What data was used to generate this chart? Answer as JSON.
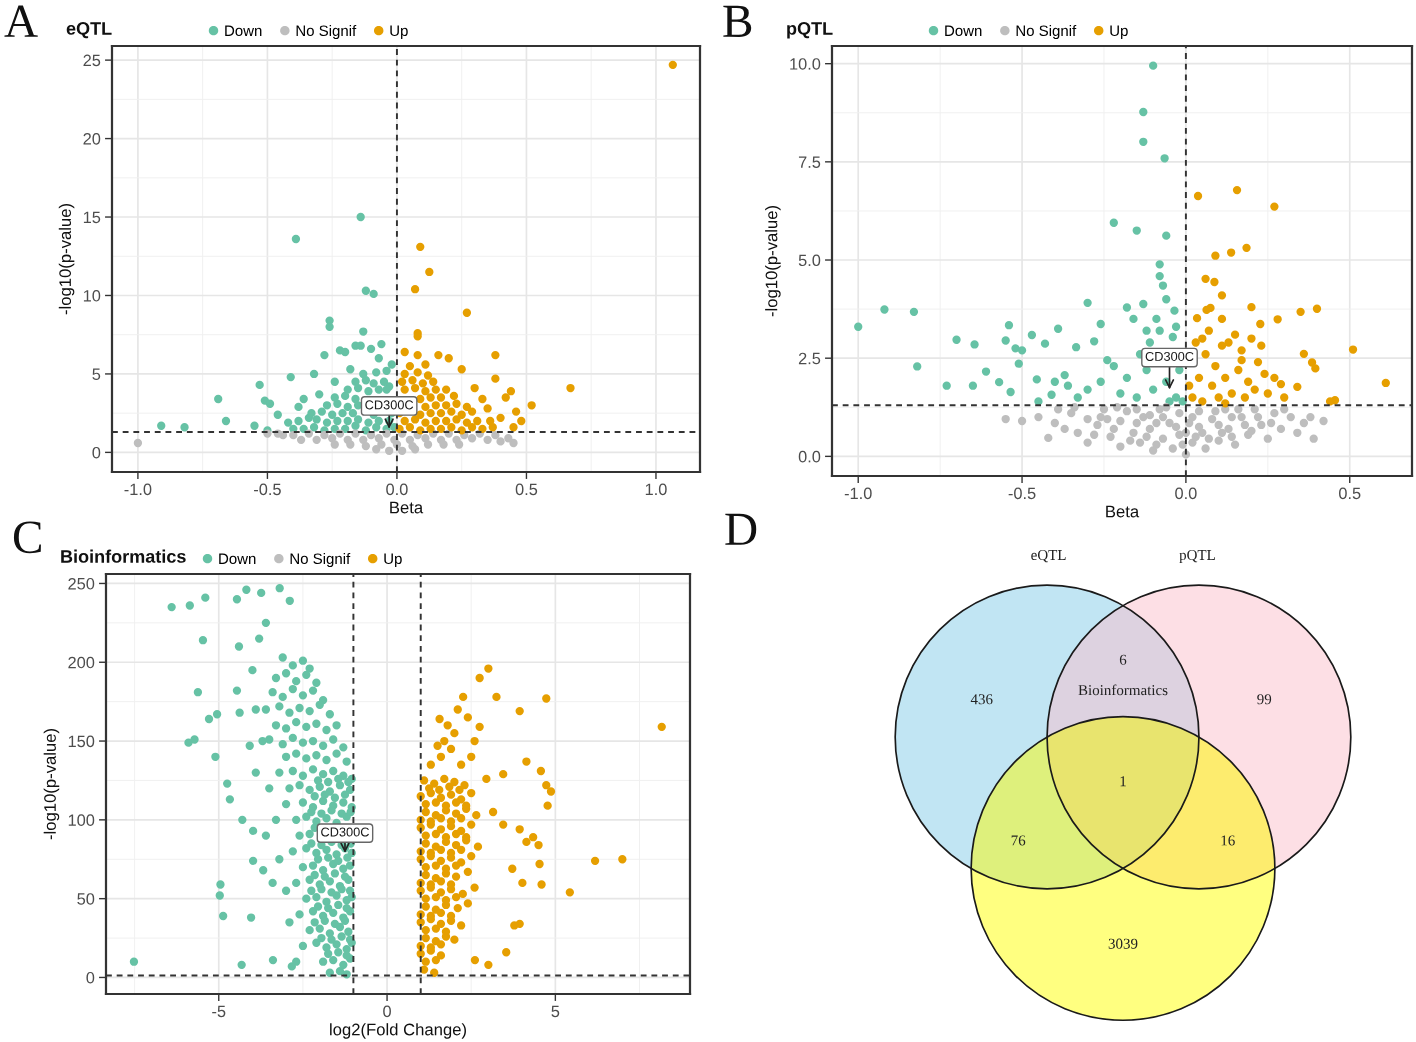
{
  "chart_data": [
    {
      "type": "scatter",
      "title": "eQTL",
      "xlabel": "Beta",
      "ylabel": "-log10(p-value)",
      "legend": "top",
      "grid": true,
      "marker": "circle",
      "xlim": [
        -1.1,
        1.17
      ],
      "ylim": [
        -1.25,
        25.9
      ],
      "xticks": [
        {
          "value": -1,
          "label": "-1.0"
        },
        -0.5,
        {
          "value": 0,
          "label": "0.0"
        },
        0.5,
        {
          "value": 1,
          "label": "1.0"
        }
      ],
      "yticks": [
        0,
        5,
        10,
        15,
        20,
        25
      ],
      "ref_lines": [
        {
          "axis": "x",
          "value": 0,
          "color": "#333333",
          "line_style": "dashed"
        },
        {
          "axis": "y",
          "value": 1.3,
          "color": "#333333",
          "line_style": "dashed"
        }
      ],
      "annotations": [
        "A",
        {
          "text": "CD300C",
          "x": -0.03,
          "y": 1.5
        }
      ],
      "series": [
        {
          "name": "Down",
          "color": "#66c2a5",
          "x": [
            -0.91,
            -0.82,
            -0.69,
            -0.66,
            -0.55,
            -0.53,
            -0.51,
            -0.49,
            -0.5,
            -0.46,
            -0.42,
            -0.41,
            -0.4,
            -0.39,
            -0.38,
            -0.36,
            -0.34,
            -0.32,
            -0.3,
            -0.28,
            -0.26,
            -0.26,
            -0.24,
            -0.22,
            -0.2,
            -0.18,
            -0.16,
            -0.14,
            -0.14,
            -0.13,
            -0.12,
            -0.1,
            -0.09,
            -0.07,
            -0.06,
            -0.04,
            -0.03,
            -0.02,
            -0.36,
            -0.32,
            -0.28,
            -0.24,
            -0.2,
            -0.16,
            -0.12,
            -0.08,
            -0.04,
            -0.01,
            -0.38,
            -0.31,
            -0.27,
            -0.23,
            -0.19,
            -0.15,
            -0.11,
            -0.07,
            -0.03,
            -0.33,
            -0.29,
            -0.25,
            -0.21,
            -0.17,
            -0.09,
            -0.02,
            -0.27,
            -0.23,
            -0.19,
            -0.15,
            -0.24,
            -0.2,
            -0.16,
            -0.19,
            -0.15,
            -0.11,
            -0.07,
            -0.04,
            -0.16,
            -0.12,
            -0.09,
            -0.05,
            -0.13,
            -0.08
          ],
          "values": [
            1.7,
            1.6,
            3.4,
            2.0,
            1.7,
            4.3,
            3.3,
            3.1,
            1.4,
            2.4,
            1.9,
            4.8,
            1.5,
            13.6,
            2.9,
            3.4,
            2.2,
            5.0,
            3.7,
            6.2,
            8.4,
            8.0,
            4.5,
            6.5,
            6.4,
            5.3,
            6.8,
            6.8,
            15.0,
            7.7,
            10.3,
            6.6,
            10.1,
            6.0,
            6.9,
            5.2,
            4.2,
            5.6,
            1.5,
            1.6,
            1.4,
            1.5,
            1.5,
            1.7,
            1.4,
            1.6,
            1.5,
            1.6,
            2.0,
            2.1,
            1.9,
            2.0,
            2.0,
            2.1,
            1.9,
            2.0,
            2.0,
            2.5,
            2.6,
            2.4,
            2.5,
            2.5,
            2.4,
            2.5,
            3.0,
            3.1,
            2.9,
            3.0,
            3.5,
            3.6,
            3.4,
            4.0,
            4.1,
            3.9,
            4.0,
            4.0,
            4.5,
            4.6,
            4.4,
            4.5,
            5.0,
            5.1
          ]
        },
        {
          "name": "No Signif",
          "color": "#bebebe",
          "x": [
            -1.0,
            0.45,
            -0.5,
            -0.44,
            -0.46,
            -0.4,
            -0.34,
            -0.28,
            -0.22,
            -0.16,
            -0.1,
            -0.04,
            0.02,
            0.08,
            0.14,
            0.2,
            0.26,
            0.32,
            0.38,
            0.43,
            -0.37,
            -0.31,
            -0.25,
            -0.19,
            -0.13,
            -0.07,
            -0.01,
            0.05,
            0.11,
            0.17,
            0.23,
            0.29,
            0.35,
            0.4,
            -0.24,
            -0.18,
            -0.12,
            -0.06,
            0.0,
            0.06,
            0.12,
            0.18,
            0.24,
            -0.08,
            -0.03,
            0.02,
            0.07
          ],
          "values": [
            0.6,
            0.6,
            1.2,
            1.1,
            1.2,
            1.1,
            1.2,
            1.1,
            1.2,
            1.2,
            1.1,
            1.2,
            1.2,
            1.1,
            1.2,
            1.2,
            1.1,
            1.2,
            1.1,
            0.9,
            0.8,
            0.8,
            0.9,
            0.8,
            0.8,
            0.9,
            0.8,
            0.8,
            0.9,
            0.8,
            0.8,
            0.9,
            0.8,
            0.7,
            0.5,
            0.5,
            0.4,
            0.5,
            0.5,
            0.4,
            0.5,
            0.5,
            0.5,
            0.2,
            0.1,
            0.1,
            0.2
          ]
        },
        {
          "name": "Up",
          "color": "#e69f00",
          "x": [
            1.065,
            0.09,
            0.125,
            0.07,
            0.27,
            0.08,
            0.08,
            0.38,
            0.38,
            0.67,
            0.52,
            0.46,
            0.45,
            0.44,
            0.42,
            0.4,
            0.3,
            0.03,
            0.08,
            0.16,
            0.2,
            0.11,
            0.05,
            0.25,
            0.35,
            0.33,
            0.48,
            0.01,
            0.05,
            0.09,
            0.13,
            0.17,
            0.21,
            0.25,
            0.29,
            0.33,
            0.37,
            0.03,
            0.07,
            0.11,
            0.15,
            0.19,
            0.23,
            0.27,
            0.31,
            0.36,
            0.01,
            0.09,
            0.13,
            0.17,
            0.21,
            0.25,
            0.29,
            0.11,
            0.15,
            0.19,
            0.23,
            0.27,
            0.09,
            0.13,
            0.17,
            0.22,
            0.03,
            0.07,
            0.11,
            0.15,
            0.19,
            0.02,
            0.06,
            0.1,
            0.14,
            0.03,
            0.08,
            0.12
          ],
          "values": [
            24.7,
            13.1,
            11.5,
            10.4,
            8.9,
            7.6,
            7.4,
            6.2,
            4.7,
            4.1,
            3.0,
            2.6,
            1.6,
            3.9,
            3.5,
            2.2,
            4.1,
            6.4,
            6.2,
            6.2,
            6.0,
            5.6,
            5.5,
            5.3,
            2.8,
            3.4,
            2.0,
            1.5,
            1.6,
            1.4,
            1.5,
            1.5,
            1.6,
            1.4,
            1.6,
            1.5,
            1.6,
            2.0,
            2.1,
            1.9,
            2.0,
            2.0,
            2.1,
            1.9,
            2.0,
            2.0,
            2.5,
            2.4,
            2.5,
            2.5,
            2.6,
            2.4,
            2.6,
            2.9,
            3.0,
            3.0,
            3.1,
            2.9,
            3.4,
            3.5,
            3.5,
            3.6,
            4.0,
            4.1,
            3.9,
            4.0,
            4.0,
            4.5,
            4.6,
            4.4,
            4.5,
            5.0,
            5.1,
            4.9
          ]
        }
      ]
    },
    {
      "type": "scatter",
      "title": "pQTL",
      "xlabel": "Beta",
      "ylabel": "-log10(p-value)",
      "legend": "top",
      "grid": true,
      "marker": "circle",
      "xlim": [
        -1.08,
        0.69
      ],
      "ylim": [
        -0.5,
        10.45
      ],
      "xticks": [
        {
          "value": -1,
          "label": "-1.0"
        },
        -0.5,
        {
          "value": 0,
          "label": "0.0"
        },
        0.5
      ],
      "yticks": [
        {
          "value": 0,
          "label": "0.0"
        },
        2.5,
        {
          "value": 5,
          "label": "5.0"
        },
        7.5,
        {
          "value": 10,
          "label": "10.0"
        }
      ],
      "ref_lines": [
        {
          "axis": "x",
          "value": 0,
          "color": "#333333",
          "line_style": "dashed"
        },
        {
          "axis": "y",
          "value": 1.3,
          "color": "#333333",
          "line_style": "dashed"
        }
      ],
      "annotations": [
        "B",
        {
          "text": "CD300C",
          "x": -0.05,
          "y": 1.7
        }
      ],
      "series": [
        {
          "name": "Down",
          "color": "#66c2a5",
          "x": [
            -0.1,
            -0.13,
            -0.13,
            -0.065,
            -0.22,
            -0.15,
            -0.06,
            -0.08,
            -0.08,
            -0.07,
            -1.0,
            -0.92,
            -0.83,
            -0.82,
            -0.7,
            -0.73,
            -0.645,
            -0.65,
            -0.61,
            -0.57,
            -0.54,
            -0.55,
            -0.535,
            -0.52,
            -0.5,
            -0.51,
            -0.47,
            -0.455,
            -0.43,
            -0.39,
            -0.41,
            -0.37,
            -0.335,
            -0.3,
            -0.28,
            -0.26,
            -0.24,
            -0.18,
            -0.16,
            -0.13,
            -0.12,
            -0.08,
            -0.035,
            -0.04,
            -0.2,
            -0.18,
            -0.15,
            -0.12,
            -0.1,
            -0.06,
            -0.03,
            -0.02,
            -0.01,
            -0.05,
            -0.3,
            -0.33,
            -0.26,
            -0.22,
            -0.4,
            -0.45,
            -0.36,
            -0.11,
            -0.09,
            -0.03,
            -0.14,
            -0.06
          ],
          "values": [
            9.95,
            8.77,
            8.01,
            7.59,
            5.95,
            5.75,
            5.62,
            4.89,
            4.59,
            4.35,
            3.3,
            3.74,
            3.68,
            2.29,
            2.97,
            1.8,
            2.85,
            1.8,
            2.16,
            1.89,
            3.34,
            2.95,
            1.64,
            2.75,
            2.7,
            2.36,
            3.09,
            1.96,
            2.87,
            3.25,
            1.57,
            2.07,
            2.78,
            3.91,
            2.93,
            3.37,
            2.45,
            3.79,
            3.5,
            3.88,
            3.2,
            3.2,
            3.71,
            3.04,
            1.6,
            2.0,
            1.5,
            2.2,
            1.7,
            1.9,
            1.5,
            2.2,
            1.4,
            1.4,
            1.7,
            1.5,
            1.9,
            2.3,
            1.9,
            1.4,
            1.8,
            2.9,
            3.5,
            3.3,
            2.6,
            4.0
          ]
        },
        {
          "name": "No Signif",
          "color": "#bebebe",
          "x": [
            -0.55,
            -0.5,
            -0.42,
            -0.4,
            -0.39,
            -0.35,
            -0.33,
            -0.3,
            -0.3,
            -0.27,
            -0.25,
            -0.23,
            -0.2,
            -0.2,
            -0.18,
            -0.16,
            -0.14,
            -0.13,
            -0.11,
            -0.1,
            -0.08,
            -0.07,
            -0.05,
            -0.04,
            -0.02,
            -0.02,
            0.0,
            0.01,
            0.02,
            0.04,
            0.05,
            0.06,
            0.08,
            0.1,
            0.12,
            0.13,
            0.15,
            0.17,
            0.19,
            0.21,
            0.23,
            0.25,
            0.27,
            0.29,
            0.32,
            0.34,
            0.38,
            0.39,
            0.42,
            -0.09,
            -0.15,
            -0.26,
            -0.06,
            0.0,
            -0.12,
            0.03,
            0.1,
            0.14,
            -0.22,
            0.18,
            -0.45,
            -0.37,
            -0.34,
            -0.28,
            -0.24,
            -0.21,
            -0.17,
            -0.15,
            -0.11,
            -0.09,
            -0.07,
            -0.03,
            -0.01,
            0.02,
            0.04,
            0.07,
            0.09,
            0.11,
            0.14,
            0.16,
            0.2,
            0.22,
            0.26,
            0.3,
            0.36
          ],
          "values": [
            0.95,
            0.9,
            0.47,
            0.85,
            1.2,
            1.1,
            0.6,
            0.95,
            0.35,
            0.8,
            1.2,
            0.5,
            0.9,
            0.25,
            1.15,
            0.6,
            0.35,
            1.0,
            0.7,
            0.15,
            1.2,
            0.45,
            0.85,
            0.2,
            1.1,
            0.55,
            0.05,
            0.85,
            0.35,
            1.15,
            0.6,
            0.2,
            0.95,
            0.4,
            1.2,
            0.7,
            0.3,
            1.0,
            0.55,
            1.2,
            0.8,
            0.45,
            1.1,
            0.7,
            1.0,
            0.6,
            1.0,
            0.45,
            0.9,
            0.85,
            0.85,
            1.0,
            1.25,
            0.6,
            0.5,
            0.5,
            0.8,
            1.0,
            0.7,
            0.8,
            1.0,
            0.7,
            1.25,
            0.55,
            0.95,
            1.25,
            0.4,
            1.2,
            1.05,
            0.3,
            1.0,
            0.75,
            0.3,
            1.0,
            0.75,
            0.45,
            1.15,
            0.6,
            0.5,
            1.2,
            0.65,
            1.0,
            0.85,
            1.2,
            0.85
          ]
        },
        {
          "name": "Up",
          "color": "#e69f00",
          "x": [
            0.037,
            0.156,
            0.27,
            0.185,
            0.138,
            0.09,
            0.06,
            0.087,
            0.11,
            0.063,
            0.034,
            0.075,
            0.2,
            0.227,
            0.28,
            0.35,
            0.4,
            0.36,
            0.385,
            0.395,
            0.51,
            0.61,
            0.455,
            0.44,
            0.29,
            0.34,
            0.23,
            0.17,
            0.11,
            0.02,
            0.04,
            0.05,
            0.06,
            0.08,
            0.09,
            0.1,
            0.12,
            0.13,
            0.14,
            0.16,
            0.18,
            0.19,
            0.21,
            0.22,
            0.25,
            0.27,
            0.03,
            0.07,
            0.15,
            0.2,
            0.01,
            0.11,
            0.05,
            0.3,
            0.12,
            0.17,
            0.24
          ],
          "values": [
            6.63,
            6.78,
            6.36,
            5.31,
            5.19,
            5.11,
            4.52,
            4.44,
            4.1,
            3.73,
            3.52,
            3.78,
            3.8,
            3.37,
            3.49,
            3.68,
            3.76,
            2.61,
            2.39,
            2.24,
            2.72,
            1.87,
            1.43,
            1.4,
            1.84,
            1.77,
            2.82,
            2.45,
            2.82,
            1.5,
            2.0,
            1.4,
            2.6,
            1.8,
            2.3,
            1.5,
            2.0,
            2.9,
            1.6,
            2.2,
            1.5,
            1.9,
            1.7,
            2.4,
            1.6,
            2.0,
            2.9,
            3.2,
            3.1,
            3.0,
            1.8,
            3.5,
            3.0,
            1.5,
            1.35,
            2.7,
            2.1
          ]
        }
      ]
    },
    {
      "type": "scatter",
      "title": "Bioinformatics",
      "xlabel": "log2(Fold Change)",
      "ylabel": "-log10(p-value)",
      "legend": "top",
      "grid": true,
      "marker": "circle",
      "xlim": [
        -8.35,
        9.0
      ],
      "ylim": [
        -10.5,
        256
      ],
      "xticks": [
        -5,
        0,
        5
      ],
      "yticks": [
        0,
        50,
        100,
        150,
        200,
        250
      ],
      "ref_lines": [
        {
          "axis": "x",
          "value": -1,
          "color": "#333333",
          "line_style": "dashed"
        },
        {
          "axis": "x",
          "value": 1,
          "color": "#333333",
          "line_style": "dashed"
        },
        {
          "axis": "y",
          "value": 1.3,
          "color": "#333333",
          "line_style": "dashed"
        }
      ],
      "annotations": [
        "C",
        {
          "text": "CD300C",
          "x": -1.25,
          "y": 79
        }
      ],
      "series": [
        {
          "name": "Down",
          "color": "#66c2a5",
          "x": [
            -7.52,
            -6.4,
            -5.86,
            -5.4,
            -5.47,
            -5.62,
            -5.9,
            -5.72,
            -5.05,
            -5.29,
            -4.95,
            -4.97,
            -4.87,
            -5.1,
            -4.75,
            -4.67,
            -4.32,
            -4.04,
            -4.18,
            -4.46,
            -3.74,
            -3.19,
            -2.89,
            -4.4,
            -4.46,
            -4.08,
            -3.98,
            -3.68,
            -3.39,
            -2.83,
            -3.98,
            -4.38,
            -3.1,
            -2.8,
            -2.5,
            -2.3,
            -3.3,
            -3.0,
            -2.7,
            -2.4,
            -2.1,
            -3.4,
            -3.1,
            -2.8,
            -2.5,
            -2.2,
            -1.9,
            -3.6,
            -3.2,
            -2.9,
            -2.6,
            -2.3,
            -2.0,
            -1.7,
            -3.3,
            -3.0,
            -2.7,
            -2.4,
            -2.1,
            -1.8,
            -1.5,
            -3.5,
            -3.1,
            -2.8,
            -2.5,
            -2.2,
            -1.9,
            -1.6,
            -1.3,
            -3.0,
            -2.7,
            -2.4,
            -2.1,
            -1.8,
            -1.5,
            -1.2,
            -3.2,
            -2.8,
            -2.5,
            -2.2,
            -1.9,
            -1.6,
            -1.3,
            -1.05,
            -2.9,
            -2.6,
            -2.3,
            -2.0,
            -1.7,
            -1.4,
            -1.1,
            -3.0,
            -2.5,
            -2.2,
            -1.9,
            -1.6,
            -1.3,
            -1.05,
            -2.7,
            -2.4,
            -2.1,
            -1.8,
            -1.5,
            -1.2,
            -2.6,
            -2.3,
            -2.8,
            -2.4,
            -2.1,
            -1.8,
            -1.5,
            -1.25,
            -1.05,
            -2.5,
            -2.2,
            -1.9,
            -1.6,
            -1.3,
            -1.1,
            -2.7,
            -2.3,
            -2.0,
            -1.7,
            -1.4,
            -1.15,
            -2.4,
            -2.1,
            -1.8,
            -1.5,
            -1.2,
            -1.05,
            -2.6,
            -2.2,
            -1.9,
            -1.6,
            -1.3,
            -1.1,
            -2.3,
            -2.0,
            -1.7,
            -1.4,
            -1.15,
            -2.5,
            -2.1,
            -1.8,
            -1.5,
            -1.2,
            -1.05,
            -1.9,
            -1.6,
            -1.3,
            -1.1,
            -1.7,
            -1.4,
            -1.2,
            -2.05,
            -1.75,
            -1.45,
            -1.15,
            -2.15,
            -1.85,
            -1.55,
            -1.25,
            -2.25,
            -1.95,
            -1.65,
            -1.35,
            -1.08,
            -2.15,
            -2.25,
            -1.95,
            -1.65,
            -1.35,
            -1.08,
            -2.05,
            -1.75,
            -1.45,
            -1.18,
            -2.15,
            -1.85,
            -1.55,
            -1.25,
            -2.25,
            -1.95,
            -1.65,
            -1.35,
            -1.1,
            -2.05,
            -1.75,
            -1.45,
            -1.2,
            -2.15,
            -1.85,
            -1.55,
            -1.25,
            -1.95,
            -1.65,
            -1.35,
            -1.1,
            -1.75,
            -1.45,
            -1.2,
            -3.8,
            -3.6,
            -4.0,
            -3.9,
            -3.7,
            -3.5,
            -3.3,
            -3.2,
            -3.0,
            -2.9,
            -3.9,
            -4.3,
            -3.6,
            -3.4,
            -2.7
          ],
          "values": [
            10,
            235,
            236,
            241,
            214,
            181,
            149,
            151,
            167,
            164,
            59,
            52,
            39,
            140,
            123,
            113,
            8,
            38,
            246,
            240,
            244,
            247,
            239,
            210,
            182,
            147,
            74,
            68,
            11,
            7,
            93,
            168,
            203,
            198,
            201,
            196,
            190,
            193,
            188,
            192,
            187,
            181,
            178,
            183,
            179,
            182,
            176,
            170,
            172,
            168,
            171,
            169,
            173,
            167,
            160,
            158,
            162,
            159,
            161,
            157,
            160,
            151,
            148,
            152,
            149,
            150,
            147,
            151,
            146,
            140,
            142,
            139,
            141,
            138,
            142,
            137,
            130,
            131,
            128,
            132,
            129,
            131,
            128,
            126,
            120,
            122,
            119,
            121,
            118,
            122,
            119,
            110,
            111,
            108,
            112,
            109,
            111,
            108,
            100,
            102,
            99,
            101,
            98,
            102,
            90,
            91,
            80,
            82,
            79,
            81,
            78,
            82,
            79,
            70,
            71,
            68,
            72,
            69,
            71,
            60,
            62,
            59,
            61,
            58,
            62,
            50,
            51,
            48,
            52,
            49,
            51,
            40,
            42,
            39,
            41,
            38,
            42,
            30,
            31,
            28,
            32,
            29,
            20,
            22,
            19,
            21,
            18,
            22,
            10,
            11,
            8,
            12,
            3,
            4,
            2,
            125,
            124,
            126,
            124,
            115,
            116,
            114,
            116,
            105,
            104,
            106,
            104,
            105,
            95,
            85,
            84,
            86,
            84,
            85,
            75,
            76,
            74,
            76,
            65,
            64,
            66,
            64,
            55,
            56,
            54,
            56,
            55,
            45,
            44,
            46,
            44,
            35,
            36,
            34,
            36,
            25,
            24,
            26,
            24,
            15,
            16,
            14,
            215,
            225,
            195,
            170,
            150,
            120,
            100,
            75,
            55,
            35,
            130,
            100,
            90,
            60,
            10
          ]
        },
        {
          "name": "No Signif",
          "color": "#bebebe"
        },
        {
          "name": "Up",
          "color": "#e69f00",
          "x": [
            8.16,
            6.99,
            6.18,
            5.43,
            4.73,
            4.87,
            4.73,
            4.57,
            4.77,
            4.5,
            4.53,
            4.34,
            3.94,
            4.14,
            4.59,
            4.02,
            3.94,
            3.78,
            3.54,
            3.01,
            2.61,
            3.72,
            3.94,
            3.25,
            3.01,
            2.75,
            2.26,
            1.56,
            1.5,
            2.75,
            4.14,
            3.45,
            2.95,
            3.15,
            3.45,
            1.6,
            1.9,
            2.2,
            2.5,
            1.3,
            2.0,
            2.4,
            1.8,
            2.1,
            2.6,
            1.7,
            1.1,
            1.4,
            1.7,
            2.0,
            2.3,
            1.0,
            1.3,
            1.6,
            1.9,
            2.2,
            2.5,
            1.15,
            1.45,
            1.75,
            2.05,
            2.35,
            2.65,
            1.0,
            1.3,
            1.6,
            1.9,
            2.2,
            2.5,
            1.15,
            1.45,
            1.75,
            2.05,
            2.35,
            2.7,
            1.0,
            1.3,
            1.6,
            1.9,
            2.2,
            2.5,
            1.15,
            1.45,
            1.75,
            2.05,
            2.4,
            1.0,
            1.3,
            1.6,
            1.9,
            2.25,
            2.6,
            1.15,
            1.45,
            1.75,
            2.1,
            2.4,
            1.0,
            1.3,
            1.6,
            1.9,
            2.2,
            1.15,
            1.45,
            1.75,
            2.0,
            1.0,
            1.3,
            1.6,
            1.1,
            1.4,
            1.25,
            1.55,
            1.85,
            2.15,
            1.15,
            1.45,
            1.75,
            2.05,
            2.35,
            1.0,
            1.3,
            1.6,
            1.9,
            2.2,
            1.15,
            1.45,
            1.75,
            2.05,
            2.35,
            1.0,
            1.3,
            1.6,
            1.9,
            2.2,
            1.15,
            1.45,
            1.75,
            2.05,
            1.0,
            1.3,
            1.6,
            1.9,
            1.15,
            1.45,
            1.75,
            2.05,
            1.0,
            1.3,
            1.6,
            1.9,
            1.15,
            1.45,
            1.75,
            1.0,
            1.3,
            1.6,
            1.15,
            1.45
          ],
          "values": [
            159,
            75,
            74,
            54,
            177,
            118,
            122,
            131,
            109,
            84,
            72,
            89,
            94,
            86,
            59,
            60,
            34,
            33,
            16,
            8,
            11,
            69,
            169,
            178,
            196,
            190,
            178,
            164,
            147,
            159,
            137,
            129,
            126,
            105,
            97,
            140,
            145,
            135,
            140,
            135,
            155,
            165,
            160,
            170,
            150,
            150,
            125,
            123,
            126,
            124,
            122,
            115,
            117,
            114,
            116,
            113,
            117,
            105,
            103,
            106,
            104,
            107,
            103,
            95,
            97,
            94,
            96,
            93,
            97,
            85,
            83,
            86,
            84,
            87,
            83,
            75,
            77,
            74,
            76,
            73,
            77,
            65,
            63,
            66,
            64,
            67,
            55,
            57,
            54,
            56,
            53,
            57,
            45,
            43,
            46,
            44,
            47,
            35,
            37,
            34,
            36,
            33,
            25,
            23,
            26,
            24,
            15,
            17,
            14,
            5,
            3,
            120,
            119,
            121,
            119,
            110,
            111,
            109,
            111,
            109,
            100,
            99,
            101,
            99,
            101,
            90,
            91,
            89,
            91,
            89,
            80,
            79,
            81,
            79,
            81,
            70,
            71,
            69,
            71,
            60,
            59,
            61,
            59,
            50,
            51,
            49,
            51,
            40,
            39,
            41,
            39,
            30,
            31,
            29,
            20,
            19,
            21,
            10,
            11
          ]
        }
      ]
    },
    {
      "type": "other",
      "annotations": [
        "D",
        "eQTL",
        "pQTL",
        "Bioinformatics",
        "436",
        "6",
        "99",
        "76",
        "1",
        "16",
        "3039"
      ]
    }
  ]
}
